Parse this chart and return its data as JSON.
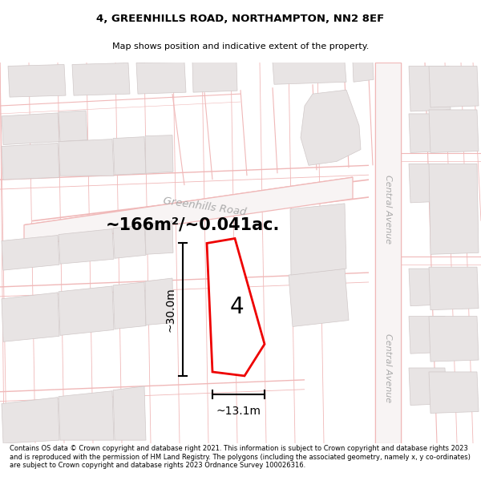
{
  "title": "4, GREENHILLS ROAD, NORTHAMPTON, NN2 8EF",
  "subtitle": "Map shows position and indicative extent of the property.",
  "area_text": "~166m²/~0.041ac.",
  "label_4": "4",
  "dim_height": "~30.0m",
  "dim_width": "~13.1m",
  "footer_text": "Contains OS data © Crown copyright and database right 2021. This information is subject to Crown copyright and database rights 2023 and is reproduced with the permission of HM Land Registry. The polygons (including the associated geometry, namely x, y co-ordinates) are subject to Crown copyright and database rights 2023 Ordnance Survey 100026316.",
  "map_bg": "#ffffff",
  "road_line_color": "#f0b8b8",
  "block_fill": "#e8e4e4",
  "block_edge": "#d0c8c8",
  "red_plot": "#ee0000",
  "street_label_color": "#aaaaaa",
  "dim_color": "#000000",
  "header_bg": "#ffffff",
  "footer_bg": "#ffffff"
}
